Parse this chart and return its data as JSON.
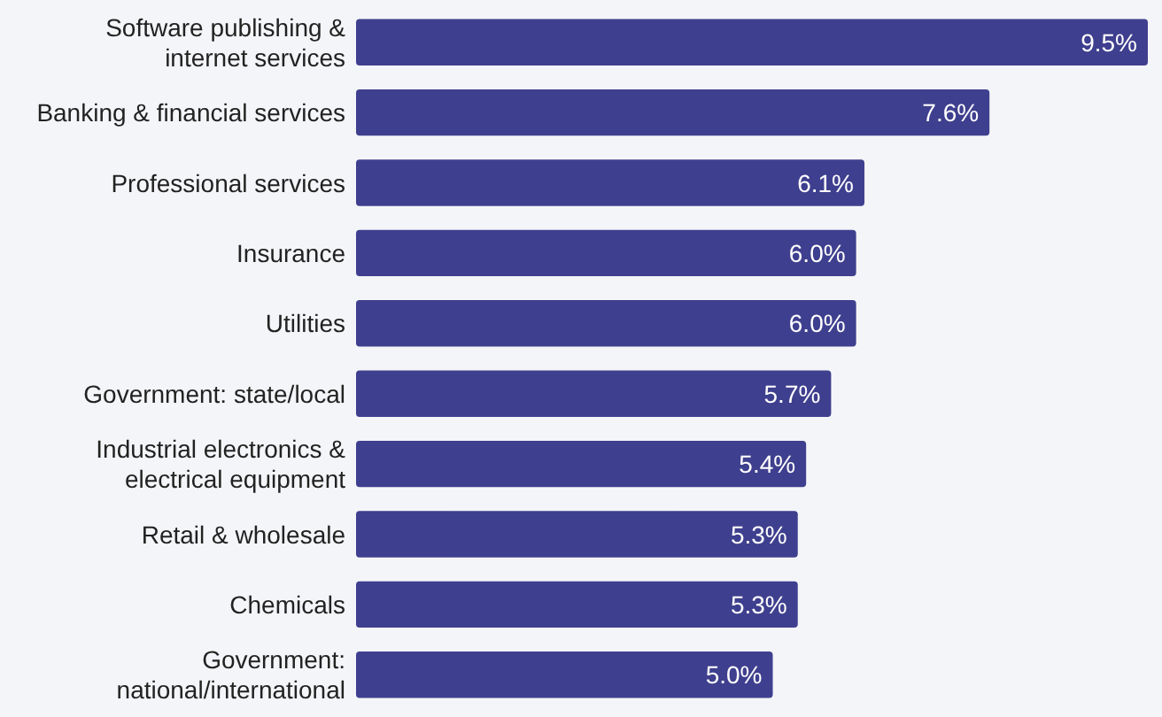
{
  "chart_data": {
    "type": "bar",
    "orientation": "horizontal",
    "categories": [
      "Software publishing & internet services",
      "Banking & financial services",
      "Professional services",
      "Insurance",
      "Utilities",
      "Government: state/local",
      "Industrial electronics & electrical equipment",
      "Retail & wholesale",
      "Chemicals",
      "Government: national/international"
    ],
    "values": [
      9.5,
      7.6,
      6.1,
      6.0,
      6.0,
      5.7,
      5.4,
      5.3,
      5.3,
      5.0
    ],
    "value_labels": [
      "9.5%",
      "7.6%",
      "6.1%",
      "6.0%",
      "6.0%",
      "5.7%",
      "5.4%",
      "5.3%",
      "5.3%",
      "5.0%"
    ],
    "color": "#3f3f8f"
  }
}
